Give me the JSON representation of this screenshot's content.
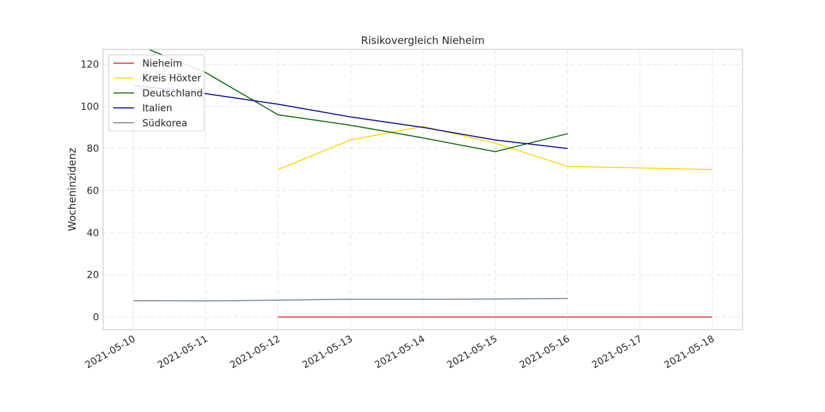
{
  "chart_data": {
    "type": "line",
    "title": "Risikovergleich Nieheim",
    "xlabel": "",
    "ylabel": "Wocheninzidenz",
    "x": [
      "2021-05-10",
      "2021-05-11",
      "2021-05-12",
      "2021-05-13",
      "2021-05-14",
      "2021-05-15",
      "2021-05-16",
      "2021-05-17",
      "2021-05-18"
    ],
    "xlim": [
      "2021-05-09T14:00",
      "2021-05-18T10:00"
    ],
    "ylim": [
      -6,
      127
    ],
    "yticks": [
      0,
      20,
      40,
      60,
      80,
      100,
      120
    ],
    "grid": true,
    "legend_position": "top-left",
    "series": [
      {
        "name": "Nieheim",
        "color": "#d62728",
        "points": [
          [
            "2021-05-12",
            0
          ],
          [
            "2021-05-13",
            0
          ],
          [
            "2021-05-14",
            0
          ],
          [
            "2021-05-15",
            0
          ],
          [
            "2021-05-16",
            0
          ],
          [
            "2021-05-17",
            0
          ],
          [
            "2021-05-18",
            0
          ]
        ]
      },
      {
        "name": "Kreis Höxter",
        "color": "#ffd700",
        "points": [
          [
            "2021-05-12",
            70
          ],
          [
            "2021-05-13",
            84
          ],
          [
            "2021-05-14",
            90.5
          ],
          [
            "2021-05-15",
            82.5
          ],
          [
            "2021-05-16",
            71.5
          ],
          [
            "2021-05-18",
            70
          ]
        ]
      },
      {
        "name": "Deutschland",
        "color": "#006400",
        "points": [
          [
            "2021-05-10",
            130
          ],
          [
            "2021-05-11",
            116
          ],
          [
            "2021-05-12",
            96
          ],
          [
            "2021-05-13",
            91
          ],
          [
            "2021-05-14",
            85
          ],
          [
            "2021-05-15",
            78.5
          ],
          [
            "2021-05-16",
            87
          ]
        ]
      },
      {
        "name": "Italien",
        "color": "#00008b",
        "points": [
          [
            "2021-05-10",
            110
          ],
          [
            "2021-05-11",
            106
          ],
          [
            "2021-05-12",
            101
          ],
          [
            "2021-05-13",
            95
          ],
          [
            "2021-05-14",
            90
          ],
          [
            "2021-05-15",
            84
          ],
          [
            "2021-05-16",
            80
          ]
        ]
      },
      {
        "name": "Südkorea",
        "color": "#708090",
        "points": [
          [
            "2021-05-10",
            7.8
          ],
          [
            "2021-05-11",
            7.6
          ],
          [
            "2021-05-12",
            8
          ],
          [
            "2021-05-13",
            8.4
          ],
          [
            "2021-05-14",
            8.4
          ],
          [
            "2021-05-15",
            8.5
          ],
          [
            "2021-05-16",
            8.8
          ]
        ]
      }
    ]
  }
}
